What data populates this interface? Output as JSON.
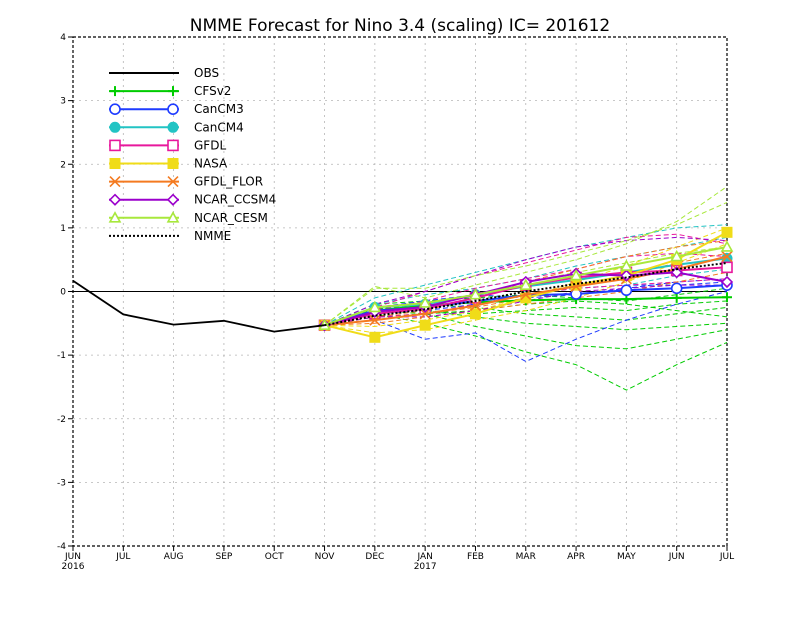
{
  "chart_data": {
    "type": "line",
    "title": "NMME Forecast for Nino 3.4 (scaling) IC= 201612",
    "xlabel": "",
    "ylabel": "",
    "x_ticks": [
      {
        "label": "JUN",
        "sub": "2016"
      },
      {
        "label": "JUL",
        "sub": ""
      },
      {
        "label": "AUG",
        "sub": ""
      },
      {
        "label": "SEP",
        "sub": ""
      },
      {
        "label": "OCT",
        "sub": ""
      },
      {
        "label": "NOV",
        "sub": ""
      },
      {
        "label": "DEC",
        "sub": ""
      },
      {
        "label": "JAN",
        "sub": "2017"
      },
      {
        "label": "FEB",
        "sub": ""
      },
      {
        "label": "MAR",
        "sub": ""
      },
      {
        "label": "APR",
        "sub": ""
      },
      {
        "label": "MAY",
        "sub": ""
      },
      {
        "label": "JUN",
        "sub": ""
      },
      {
        "label": "JUL",
        "sub": ""
      }
    ],
    "y_ticks": [
      "-4",
      "-3",
      "-2",
      "-1",
      "0",
      "1",
      "2",
      "3",
      "4"
    ],
    "ylim": [
      -4,
      4
    ],
    "grid": true,
    "legend_position": "top-left",
    "series": [
      {
        "name": "OBS",
        "color": "#000000",
        "marker": "none",
        "dash": "solid",
        "values": [
          0.17,
          -0.36,
          -0.52,
          -0.46,
          -0.63,
          -0.53,
          null,
          null,
          null,
          null,
          null,
          null,
          null,
          null
        ]
      },
      {
        "name": "CFSv2",
        "color": "#00cc00",
        "marker": "plus",
        "dash": "solid",
        "values": [
          null,
          null,
          null,
          null,
          null,
          -0.53,
          -0.3,
          -0.22,
          -0.17,
          -0.14,
          -0.12,
          -0.12,
          -0.1,
          -0.09
        ]
      },
      {
        "name": "CanCM3",
        "color": "#1f3cff",
        "marker": "circle",
        "dash": "solid",
        "values": [
          null,
          null,
          null,
          null,
          null,
          -0.53,
          -0.3,
          -0.25,
          -0.15,
          -0.06,
          -0.04,
          0.02,
          0.05,
          0.1
        ]
      },
      {
        "name": "CanCM4",
        "color": "#22c4c4",
        "marker": "dot",
        "dash": "solid",
        "values": [
          null,
          null,
          null,
          null,
          null,
          -0.53,
          -0.25,
          -0.2,
          -0.05,
          0.08,
          0.18,
          0.3,
          0.42,
          0.52
        ]
      },
      {
        "name": "GFDL",
        "color": "#e8189c",
        "marker": "square",
        "dash": "solid",
        "values": [
          null,
          null,
          null,
          null,
          null,
          -0.53,
          -0.35,
          -0.27,
          -0.1,
          0.1,
          0.22,
          0.3,
          0.33,
          0.38
        ]
      },
      {
        "name": "NASA",
        "color": "#f0dc18",
        "marker": "filled-square",
        "dash": "solid",
        "values": [
          null,
          null,
          null,
          null,
          null,
          -0.53,
          -0.72,
          -0.53,
          -0.35,
          -0.1,
          0.1,
          0.25,
          0.5,
          0.93
        ]
      },
      {
        "name": "GFDL_FLOR",
        "color": "#f47a20",
        "marker": "x",
        "dash": "solid",
        "values": [
          null,
          null,
          null,
          null,
          null,
          -0.53,
          -0.45,
          -0.35,
          -0.22,
          -0.05,
          0.08,
          0.2,
          0.35,
          0.55
        ]
      },
      {
        "name": "NCAR_CCSM4",
        "color": "#9b00cc",
        "marker": "diamond",
        "dash": "solid",
        "values": [
          null,
          null,
          null,
          null,
          null,
          -0.53,
          -0.32,
          -0.24,
          -0.05,
          0.15,
          0.28,
          0.25,
          0.3,
          0.15
        ]
      },
      {
        "name": "NCAR_CESM",
        "color": "#a8e83c",
        "marker": "triangle",
        "dash": "solid",
        "values": [
          null,
          null,
          null,
          null,
          null,
          -0.53,
          -0.25,
          -0.18,
          -0.05,
          0.1,
          0.25,
          0.4,
          0.55,
          0.7
        ]
      },
      {
        "name": "NMME",
        "color": "#000000",
        "marker": "none",
        "dash": "dotted",
        "values": [
          null,
          null,
          null,
          null,
          null,
          -0.53,
          -0.38,
          -0.28,
          -0.15,
          0.0,
          0.12,
          0.22,
          0.35,
          0.45
        ]
      }
    ],
    "ensemble_members": [
      {
        "color": "#00cc00",
        "values": [
          -0.53,
          -0.35,
          -0.5,
          -0.7,
          -0.95,
          -1.15,
          -1.55,
          -1.15,
          -0.8
        ]
      },
      {
        "color": "#00cc00",
        "values": [
          -0.53,
          -0.3,
          -0.35,
          -0.55,
          -0.7,
          -0.85,
          -0.9,
          -0.75,
          -0.6
        ]
      },
      {
        "color": "#00cc00",
        "values": [
          -0.53,
          -0.25,
          -0.3,
          -0.4,
          -0.5,
          -0.55,
          -0.6,
          -0.55,
          -0.5
        ]
      },
      {
        "color": "#00cc00",
        "values": [
          -0.53,
          -0.28,
          -0.2,
          -0.25,
          -0.35,
          -0.4,
          -0.45,
          -0.35,
          -0.25
        ]
      },
      {
        "color": "#00cc00",
        "values": [
          -0.53,
          -0.2,
          -0.15,
          -0.1,
          -0.05,
          -0.1,
          -0.15,
          -0.05,
          0.05
        ]
      },
      {
        "color": "#00cc00",
        "values": [
          -0.53,
          -0.35,
          -0.3,
          -0.35,
          -0.3,
          -0.25,
          -0.3,
          -0.2,
          -0.15
        ]
      },
      {
        "color": "#00cc00",
        "values": [
          -0.53,
          -0.4,
          -0.35,
          -0.3,
          -0.2,
          -0.15,
          -0.2,
          -0.3,
          -0.4
        ]
      },
      {
        "color": "#1f3cff",
        "values": [
          -0.53,
          -0.45,
          -0.75,
          -0.65,
          -1.1,
          -0.75,
          -0.45,
          -0.2,
          0.0
        ]
      },
      {
        "color": "#1f3cff",
        "values": [
          -0.53,
          -0.25,
          -0.15,
          -0.05,
          -0.1,
          -0.05,
          0.05,
          0.15,
          0.2
        ]
      },
      {
        "color": "#1f3cff",
        "values": [
          -0.53,
          -0.35,
          -0.3,
          -0.2,
          -0.05,
          0.05,
          0.1,
          0.1,
          0.15
        ]
      },
      {
        "color": "#22c4c4",
        "values": [
          -0.53,
          -0.1,
          0.1,
          0.3,
          0.5,
          0.7,
          0.85,
          1.0,
          1.05
        ]
      },
      {
        "color": "#22c4c4",
        "values": [
          -0.53,
          -0.2,
          -0.05,
          0.05,
          0.2,
          0.4,
          0.55,
          0.7,
          0.85
        ]
      },
      {
        "color": "#22c4c4",
        "values": [
          -0.53,
          -0.3,
          -0.25,
          -0.15,
          -0.05,
          0.05,
          0.1,
          0.25,
          0.35
        ]
      },
      {
        "color": "#e8189c",
        "values": [
          -0.53,
          -0.25,
          0.0,
          0.25,
          0.45,
          0.65,
          0.85,
          0.9,
          0.75
        ]
      },
      {
        "color": "#e8189c",
        "values": [
          -0.53,
          -0.3,
          -0.15,
          0.05,
          0.2,
          0.35,
          0.55,
          0.6,
          0.55
        ]
      },
      {
        "color": "#e8189c",
        "values": [
          -0.53,
          -0.4,
          -0.35,
          -0.2,
          -0.05,
          0.05,
          0.1,
          0.15,
          0.2
        ]
      },
      {
        "color": "#f0dc18",
        "values": [
          -0.53,
          -0.55,
          -0.45,
          -0.3,
          -0.1,
          0.15,
          0.4,
          0.7,
          1.0
        ]
      },
      {
        "color": "#f0dc18",
        "values": [
          -0.53,
          -0.65,
          -0.6,
          -0.45,
          -0.3,
          -0.1,
          0.15,
          0.45,
          0.75
        ]
      },
      {
        "color": "#f47a20",
        "values": [
          -0.53,
          -0.4,
          -0.3,
          -0.1,
          0.15,
          0.35,
          0.55,
          0.7,
          0.8
        ]
      },
      {
        "color": "#f47a20",
        "values": [
          -0.53,
          -0.5,
          -0.4,
          -0.3,
          -0.2,
          -0.1,
          0.0,
          0.15,
          0.3
        ]
      },
      {
        "color": "#f47a20",
        "values": [
          -0.53,
          -0.45,
          -0.35,
          -0.25,
          -0.1,
          0.1,
          0.25,
          0.45,
          0.6
        ]
      },
      {
        "color": "#9b00cc",
        "values": [
          -0.53,
          -0.2,
          0.0,
          0.25,
          0.5,
          0.7,
          0.8,
          0.85,
          0.8
        ]
      },
      {
        "color": "#9b00cc",
        "values": [
          -0.53,
          -0.4,
          -0.4,
          -0.3,
          -0.15,
          0.0,
          0.05,
          0.1,
          0.1
        ]
      },
      {
        "color": "#a8e83c",
        "values": [
          -0.53,
          0.05,
          0.05,
          0.25,
          0.4,
          0.6,
          0.8,
          1.05,
          1.4
        ]
      },
      {
        "color": "#a8e83c",
        "values": [
          -0.53,
          0.08,
          -0.1,
          0.1,
          0.3,
          0.5,
          0.75,
          1.1,
          1.65
        ]
      },
      {
        "color": "#a8e83c",
        "values": [
          -0.53,
          -0.3,
          -0.2,
          -0.05,
          0.15,
          0.3,
          0.45,
          0.6,
          0.7
        ]
      }
    ],
    "ensemble_x_start_index": 5
  }
}
